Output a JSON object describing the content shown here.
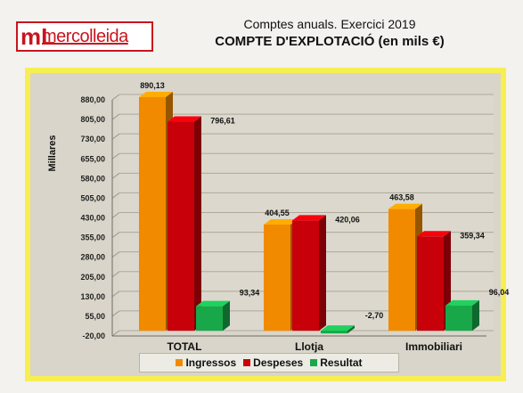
{
  "header": {
    "logo_mark": "mL",
    "logo_text": "mercolleida",
    "title": "Comptes anuals. Exercici 2019",
    "subtitle": "COMPTE  D'EXPLOTACIÓ  (en mils €)"
  },
  "chart_data": {
    "type": "bar",
    "categories": [
      "TOTAL",
      "Llotja",
      "Immobiliari"
    ],
    "series": [
      {
        "name": "Ingressos",
        "values": [
          890.13,
          404.55,
          463.58
        ],
        "labels": [
          "890,13",
          "404,55",
          "463,58"
        ],
        "color": "#f28a00"
      },
      {
        "name": "Despeses",
        "values": [
          796.61,
          420.06,
          359.34
        ],
        "labels": [
          "796,61",
          "420,06",
          "359,34"
        ],
        "color": "#c8000a"
      },
      {
        "name": "Resultat",
        "values": [
          93.34,
          -2.7,
          96.04
        ],
        "labels": [
          "93,34",
          "-2,70",
          "96,04"
        ],
        "color": "#18a84a"
      }
    ],
    "ylabel": "Millares",
    "yticks": [
      "-20,00",
      "55,00",
      "130,00",
      "205,00",
      "280,00",
      "355,00",
      "430,00",
      "505,00",
      "580,00",
      "655,00",
      "730,00",
      "805,00",
      "880,00"
    ],
    "ylim": [
      -20,
      880
    ],
    "grid": true,
    "legend_position": "bottom"
  }
}
